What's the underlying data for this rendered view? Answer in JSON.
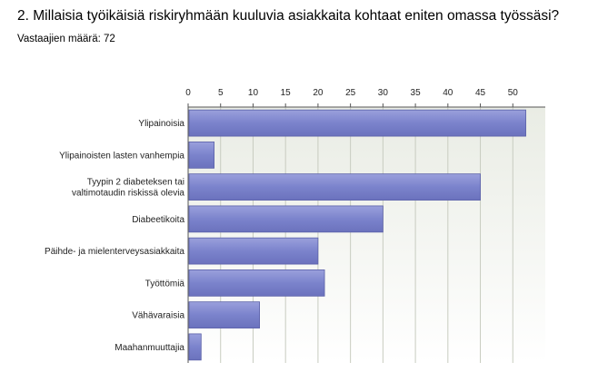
{
  "header": {
    "title": "2. Millaisia työikäisiä riskiryhmään kuuluvia asiakkaita kohtaat eniten omassa työssäsi?",
    "respondents": "Vastaajien määrä: 72"
  },
  "chart_data": {
    "type": "bar",
    "orientation": "horizontal",
    "title": "2. Millaisia työikäisiä riskiryhmään kuuluvia asiakkaita kohtaat eniten omassa työssäsi?",
    "subtitle": "Vastaajien määrä: 72",
    "categories": [
      [
        "Ylipainoisia"
      ],
      [
        "Ylipainoisten lasten vanhempia"
      ],
      [
        "Tyypin 2 diabeteksen tai",
        "valtimotaudin riskissä olevia"
      ],
      [
        "Diabeetikoita"
      ],
      [
        "Päihde- ja mielenterveysasiakkaita"
      ],
      [
        "Työttömiä"
      ],
      [
        "Vähävaraisia"
      ],
      [
        "Maahanmuuttajia"
      ]
    ],
    "values": [
      52,
      4,
      45,
      30,
      20,
      21,
      11,
      2
    ],
    "x_ticks": [
      "0",
      "5",
      "10",
      "15",
      "20",
      "25",
      "30",
      "35",
      "40",
      "45",
      "50"
    ],
    "xlim": [
      0,
      55
    ],
    "axis_position": "top",
    "grid": true,
    "colors": {
      "bar": "#7b83cc",
      "bar_edge": "#5a60a8",
      "plot_bg_top": "#e9ece4",
      "plot_bg_bottom": "#ffffff",
      "grid": "#c8ccc0",
      "axis": "#555555"
    }
  }
}
